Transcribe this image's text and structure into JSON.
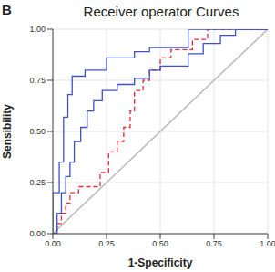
{
  "chart_data": {
    "type": "line",
    "title": "Receiver operator Curves",
    "annotation": "B",
    "x_label": "1-Specificity",
    "y_label": "Sensibility",
    "xlim": [
      0,
      1
    ],
    "ylim": [
      0,
      1
    ],
    "xticks": [
      {
        "value": 0,
        "label": "0.00"
      },
      {
        "value": 0.25,
        "label": "0.25"
      },
      {
        "value": 0.5,
        "label": "0.50"
      },
      {
        "value": 0.75,
        "label": "0.75"
      },
      {
        "value": 1,
        "label": "1.00"
      }
    ],
    "yticks": [
      {
        "value": 0,
        "label": "0.00"
      },
      {
        "value": 0.25,
        "label": "0.25"
      },
      {
        "value": 0.5,
        "label": "0.50"
      },
      {
        "value": 0.75,
        "label": "0.75"
      },
      {
        "value": 1,
        "label": "1.00"
      }
    ],
    "grid": true,
    "series": [
      {
        "color": "#b5b5b5",
        "line_style": "solid",
        "x": [
          0,
          1
        ],
        "values": [
          0,
          1
        ]
      },
      {
        "color": "#e8283c",
        "line_style": "dashed",
        "x": [
          0,
          0.02,
          0.02,
          0.04,
          0.04,
          0.06,
          0.06,
          0.08,
          0.08,
          0.12,
          0.12,
          0.22,
          0.22,
          0.26,
          0.26,
          0.3,
          0.3,
          0.33,
          0.33,
          0.36,
          0.36,
          0.38,
          0.38,
          0.42,
          0.42,
          0.45,
          0.45,
          0.5,
          0.5,
          0.55,
          0.55,
          0.65,
          0.65,
          0.72,
          0.72,
          1
        ],
        "values": [
          0,
          0,
          0.05,
          0.05,
          0.1,
          0.1,
          0.15,
          0.15,
          0.2,
          0.2,
          0.23,
          0.23,
          0.3,
          0.3,
          0.4,
          0.4,
          0.45,
          0.45,
          0.52,
          0.52,
          0.6,
          0.6,
          0.7,
          0.7,
          0.75,
          0.75,
          0.8,
          0.8,
          0.86,
          0.86,
          0.9,
          0.9,
          0.95,
          0.95,
          1,
          1
        ]
      },
      {
        "color": "#3f51c4",
        "line_style": "solid",
        "x": [
          0,
          0.02,
          0.02,
          0.04,
          0.04,
          0.06,
          0.06,
          0.08,
          0.08,
          0.1,
          0.1,
          0.13,
          0.13,
          0.16,
          0.16,
          0.19,
          0.19,
          0.23,
          0.23,
          0.3,
          0.3,
          0.38,
          0.38,
          0.45,
          0.45,
          0.5,
          0.5,
          0.63,
          0.63,
          0.7,
          0.7,
          0.78,
          0.78,
          0.85,
          0.85,
          1
        ],
        "values": [
          0,
          0,
          0.1,
          0.1,
          0.2,
          0.2,
          0.28,
          0.28,
          0.35,
          0.35,
          0.45,
          0.45,
          0.52,
          0.52,
          0.6,
          0.6,
          0.65,
          0.65,
          0.7,
          0.7,
          0.73,
          0.73,
          0.76,
          0.76,
          0.8,
          0.8,
          0.82,
          0.82,
          0.88,
          0.88,
          0.93,
          0.93,
          0.97,
          0.97,
          1,
          1
        ]
      },
      {
        "color": "#3f51c4",
        "line_style": "solid",
        "x": [
          0,
          0,
          0.03,
          0.03,
          0.05,
          0.05,
          0.07,
          0.07,
          0.09,
          0.09,
          0.15,
          0.15,
          0.25,
          0.25,
          0.38,
          0.38,
          0.45,
          0.45,
          0.63,
          0.63,
          1
        ],
        "values": [
          0,
          0.2,
          0.2,
          0.35,
          0.35,
          0.57,
          0.57,
          0.68,
          0.68,
          0.77,
          0.77,
          0.8,
          0.8,
          0.86,
          0.86,
          0.89,
          0.89,
          0.91,
          0.91,
          1,
          1
        ]
      }
    ]
  }
}
